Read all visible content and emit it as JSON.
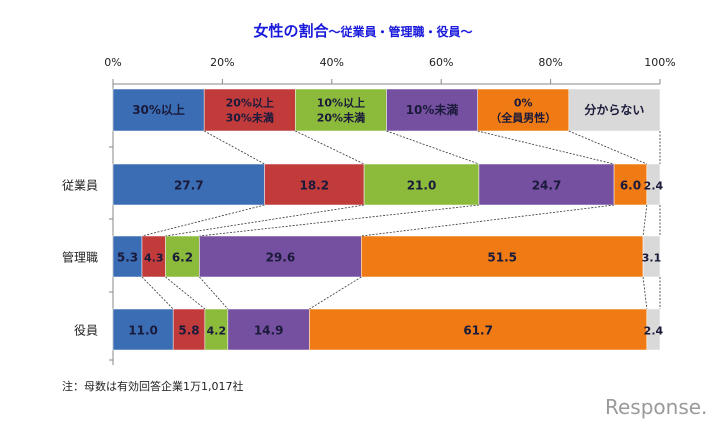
{
  "chart_data": {
    "type": "bar",
    "orientation": "horizontal-stacked-100",
    "title": "女性の割合",
    "subtitle": "～従業員・管理職・役員～",
    "xlim": [
      0,
      100
    ],
    "xticks": [
      "0%",
      "20%",
      "40%",
      "60%",
      "80%",
      "100%"
    ],
    "legend_placement": "top (as a stacked bar)",
    "categories": [
      "従業員",
      "管理職",
      "役員"
    ],
    "series": [
      {
        "name": "30%以上",
        "legend_lines": [
          "30%以上"
        ],
        "color": "#3b6db5",
        "values": [
          27.7,
          5.3,
          11.0
        ]
      },
      {
        "name": "20%以上30%未満",
        "legend_lines": [
          "20%以上",
          "30%未満"
        ],
        "color": "#c23b3b",
        "values": [
          18.2,
          4.3,
          5.8
        ]
      },
      {
        "name": "10%以上20%未満",
        "legend_lines": [
          "10%以上",
          "20%未満"
        ],
        "color": "#8cbb3c",
        "values": [
          21.0,
          6.2,
          4.2
        ]
      },
      {
        "name": "10%未満",
        "legend_lines": [
          "10%未満"
        ],
        "color": "#7650a0",
        "values": [
          24.7,
          29.6,
          14.9
        ]
      },
      {
        "name": "0%（全員男性）",
        "legend_lines": [
          "0%",
          "（全員男性）"
        ],
        "color": "#f07b14",
        "values": [
          6.0,
          51.5,
          61.7
        ]
      },
      {
        "name": "分からない",
        "legend_lines": [
          "分からない"
        ],
        "color": "#d9d9d9",
        "values": [
          2.4,
          3.1,
          2.4
        ]
      }
    ],
    "data_labels": [
      [
        "27.7",
        "18.2",
        "21.0",
        "24.7",
        "6.0",
        "2.4"
      ],
      [
        "5.3",
        "4.3",
        "6.2",
        "29.6",
        "51.5",
        "3.1"
      ],
      [
        "11.0",
        "5.8",
        "4.2",
        "14.9",
        "61.7",
        "2.4"
      ]
    ],
    "connector_lines": "dashed"
  },
  "note": "注：母数は有効回答企業1万1,017社",
  "watermark": "Response."
}
